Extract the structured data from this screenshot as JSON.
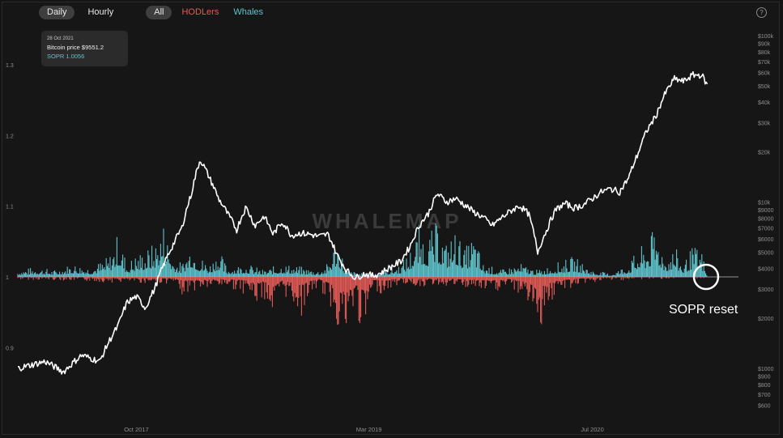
{
  "toolbar": {
    "daily_label": "Daily",
    "hourly_label": "Hourly",
    "all_label": "All",
    "hodlers_label": "HODLers",
    "whales_label": "Whales",
    "help_symbol": "?"
  },
  "tooltip": {
    "date": "28 Oct 2021",
    "price": "Bitcoin price $9551.2",
    "sopr": "SOPR 1.0056"
  },
  "watermark": "WHALEMAP",
  "annotation": "SOPR reset",
  "colors": {
    "background": "#161616",
    "price_line": "#ffffff",
    "whales": "#5fc3cc",
    "hodlers": "#e35b57",
    "baseline": "#bdbdbd",
    "axis_text": "#8e8e8e"
  },
  "icons": [
    "help-icon",
    "annotation-circle"
  ],
  "chart_data": {
    "type": "line",
    "x_ticks": [
      "Oct 2017",
      "Mar 2019",
      "Jul 2020"
    ],
    "left_axis": {
      "name": "SOPR",
      "ticks": [
        "1.3",
        "1.2",
        "1.1",
        "1",
        "0.9"
      ],
      "values": [
        1.3,
        1.2,
        1.1,
        1.0,
        0.9
      ],
      "baseline": 1.0
    },
    "right_axis": {
      "name": "Bitcoin price",
      "scale": "log",
      "ticks": [
        "$100k",
        "$90k",
        "$80k",
        "$70k",
        "$60k",
        "$50k",
        "$40k",
        "$30k",
        "$20k",
        "$10k",
        "$9000",
        "$8000",
        "$7000",
        "$6000",
        "$5000",
        "$4000",
        "$3000",
        "$2000",
        "$1000",
        "$900",
        "$800",
        "$700",
        "$600"
      ],
      "values": [
        100000,
        90000,
        80000,
        70000,
        60000,
        50000,
        40000,
        30000,
        20000,
        10000,
        9000,
        8000,
        7000,
        6000,
        5000,
        4000,
        3000,
        2000,
        1000,
        900,
        800,
        700,
        600
      ]
    },
    "legend": [
      "HODLers",
      "Whales"
    ],
    "series": [
      {
        "name": "Bitcoin price",
        "axis": "right",
        "color": "#ffffff",
        "points": [
          [
            0,
            1000
          ],
          [
            3,
            1100
          ],
          [
            5,
            950
          ],
          [
            7,
            1200
          ],
          [
            9,
            1100
          ],
          [
            11,
            1800
          ],
          [
            12,
            2500
          ],
          [
            13,
            2700
          ],
          [
            14,
            2300
          ],
          [
            15,
            3000
          ],
          [
            16,
            4200
          ],
          [
            17,
            5500
          ],
          [
            18,
            7000
          ],
          [
            19,
            11000
          ],
          [
            20,
            18000
          ],
          [
            21,
            14000
          ],
          [
            22,
            10500
          ],
          [
            23,
            8500
          ],
          [
            24,
            6800
          ],
          [
            25,
            9300
          ],
          [
            26,
            7200
          ],
          [
            27,
            8200
          ],
          [
            28,
            6400
          ],
          [
            29,
            7600
          ],
          [
            30,
            6300
          ],
          [
            31,
            6500
          ],
          [
            32,
            6400
          ],
          [
            33,
            6200
          ],
          [
            34,
            6400
          ],
          [
            35,
            4800
          ],
          [
            36,
            3900
          ],
          [
            37,
            3500
          ],
          [
            38,
            3700
          ],
          [
            39,
            3600
          ],
          [
            40,
            3800
          ],
          [
            41,
            4100
          ],
          [
            42,
            4400
          ],
          [
            43,
            5400
          ],
          [
            44,
            7200
          ],
          [
            45,
            8500
          ],
          [
            46,
            11200
          ],
          [
            47,
            10000
          ],
          [
            48,
            10500
          ],
          [
            49,
            9600
          ],
          [
            50,
            8700
          ],
          [
            51,
            8100
          ],
          [
            52,
            7200
          ],
          [
            53,
            8000
          ],
          [
            54,
            8800
          ],
          [
            55,
            9500
          ],
          [
            56,
            8500
          ],
          [
            57,
            5000
          ],
          [
            58,
            6800
          ],
          [
            59,
            9000
          ],
          [
            60,
            9800
          ],
          [
            61,
            9200
          ],
          [
            62,
            9600
          ],
          [
            63,
            10500
          ],
          [
            64,
            11500
          ],
          [
            65,
            12000
          ],
          [
            66,
            11500
          ],
          [
            67,
            14000
          ],
          [
            68,
            19500
          ],
          [
            69,
            27000
          ],
          [
            70,
            33000
          ],
          [
            71,
            45000
          ],
          [
            72,
            55000
          ],
          [
            73,
            53000
          ],
          [
            74,
            58000
          ],
          [
            75,
            58000
          ],
          [
            75.6,
            50000
          ]
        ]
      },
      {
        "name": "Whales",
        "axis": "left",
        "color": "#5fc3cc",
        "points": [
          [
            0,
            1.01
          ],
          [
            2,
            1.015
          ],
          [
            4,
            1.01
          ],
          [
            6,
            1.02
          ],
          [
            8,
            1.015
          ],
          [
            10,
            1.03
          ],
          [
            11,
            1.065
          ],
          [
            12,
            1.02
          ],
          [
            13,
            1.035
          ],
          [
            14,
            1.04
          ],
          [
            15,
            1.05
          ],
          [
            16,
            1.083
          ],
          [
            17,
            1.03
          ],
          [
            18,
            1.02
          ],
          [
            19,
            1.055
          ],
          [
            20,
            1.03
          ],
          [
            21,
            1.02
          ],
          [
            22,
            1.04
          ],
          [
            23,
            1.015
          ],
          [
            25,
            1.02
          ],
          [
            27,
            1.01
          ],
          [
            29,
            1.02
          ],
          [
            31,
            1.015
          ],
          [
            33,
            1.01
          ],
          [
            34,
            1.02
          ],
          [
            35,
            1.065
          ],
          [
            36,
            1.01
          ],
          [
            38,
            1.005
          ],
          [
            40,
            1.01
          ],
          [
            42,
            1.02
          ],
          [
            43,
            1.04
          ],
          [
            44,
            1.075
          ],
          [
            45,
            1.06
          ],
          [
            46,
            1.08
          ],
          [
            47,
            1.05
          ],
          [
            48,
            1.07
          ],
          [
            49,
            1.04
          ],
          [
            50,
            1.065
          ],
          [
            51,
            1.02
          ],
          [
            53,
            1.01
          ],
          [
            55,
            1.02
          ],
          [
            57,
            1.01
          ],
          [
            59,
            1.02
          ],
          [
            61,
            1.03
          ],
          [
            63,
            1.01
          ],
          [
            65,
            1.005
          ],
          [
            67,
            1.02
          ],
          [
            68,
            1.04
          ],
          [
            69,
            1.05
          ],
          [
            70,
            1.075
          ],
          [
            71,
            1.03
          ],
          [
            72,
            1.045
          ],
          [
            73,
            1.02
          ],
          [
            74,
            1.045
          ],
          [
            75,
            1.04
          ],
          [
            75.6,
            1.0
          ]
        ]
      },
      {
        "name": "HODLers",
        "axis": "left",
        "color": "#e35b57",
        "points": [
          [
            0,
            0.996
          ],
          [
            5,
            0.995
          ],
          [
            10,
            0.992
          ],
          [
            17,
            0.99
          ],
          [
            18,
            0.975
          ],
          [
            20,
            0.98
          ],
          [
            23,
            0.985
          ],
          [
            25,
            0.975
          ],
          [
            26,
            0.955
          ],
          [
            27,
            0.97
          ],
          [
            28,
            0.93
          ],
          [
            29,
            0.975
          ],
          [
            30,
            0.96
          ],
          [
            31,
            0.94
          ],
          [
            32,
            0.97
          ],
          [
            33,
            0.985
          ],
          [
            34,
            0.96
          ],
          [
            35,
            0.93
          ],
          [
            36,
            0.885
          ],
          [
            37,
            0.95
          ],
          [
            38,
            0.9
          ],
          [
            39,
            0.98
          ],
          [
            40,
            0.975
          ],
          [
            42,
            0.99
          ],
          [
            44,
            0.985
          ],
          [
            46,
            0.988
          ],
          [
            48,
            0.985
          ],
          [
            50,
            0.98
          ],
          [
            52,
            0.975
          ],
          [
            54,
            0.985
          ],
          [
            56,
            0.96
          ],
          [
            57,
            0.915
          ],
          [
            58,
            0.95
          ],
          [
            59,
            0.97
          ],
          [
            60,
            0.98
          ],
          [
            62,
            0.99
          ],
          [
            65,
            0.995
          ],
          [
            70,
            0.997
          ],
          [
            75,
            0.998
          ]
        ]
      }
    ]
  }
}
